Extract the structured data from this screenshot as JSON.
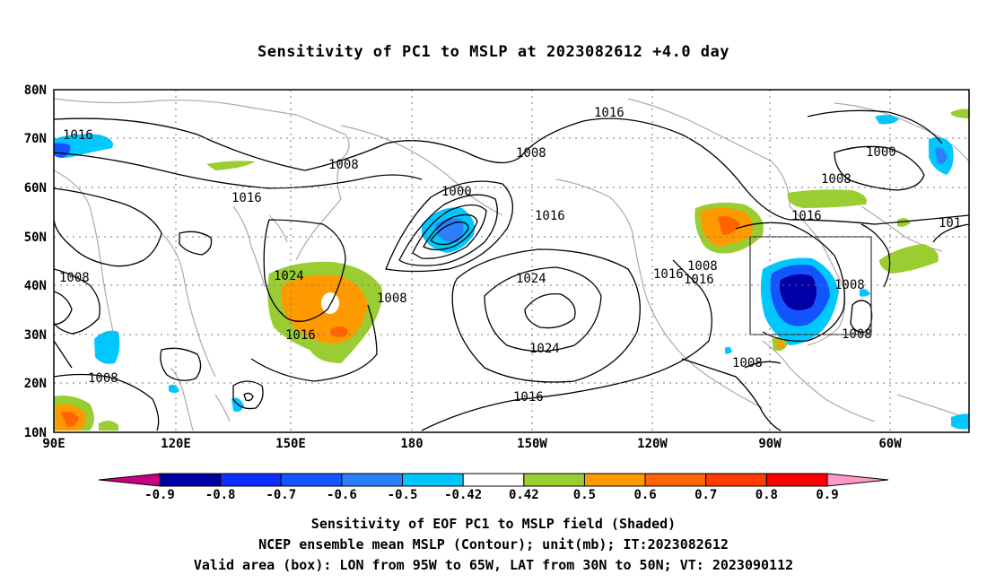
{
  "title": "Sensitivity of PC1 to MSLP at 2023082612 +4.0 day",
  "lat_labels": [
    "80N",
    "70N",
    "60N",
    "50N",
    "40N",
    "30N",
    "20N",
    "10N"
  ],
  "lon_labels": [
    "90E",
    "120E",
    "150E",
    "180",
    "150W",
    "120W",
    "90W",
    "60W"
  ],
  "colorbar": {
    "colors": [
      "#c8007f",
      "#0000a6",
      "#0a2fff",
      "#1454ff",
      "#2a80ff",
      "#00c8ff",
      "#ffffff",
      "#9acd32",
      "#ff9900",
      "#ff6400",
      "#ff3c00",
      "#ff0000",
      "#ff9ac8"
    ],
    "labels": [
      "-0.9",
      "-0.8",
      "-0.7",
      "-0.6",
      "-0.5",
      "-0.42",
      "0.42",
      "0.5",
      "0.6",
      "0.7",
      "0.8",
      "0.9"
    ]
  },
  "contour_labels": [
    "1016",
    "1016",
    "1008",
    "1008",
    "1016",
    "1000",
    "1016",
    "1024",
    "1008",
    "1016",
    "1008",
    "1024",
    "1016",
    "1024",
    "1016",
    "1008",
    "1008",
    "1016",
    "1016",
    "1008",
    "1008",
    "1008",
    "1000",
    "1008",
    "1016",
    "1008",
    "1008",
    "1016",
    "101"
  ],
  "captions": [
    "Sensitivity of EOF PC1 to MSLP field (Shaded)",
    "NCEP ensemble mean MSLP (Contour); unit(mb); IT:2023082612",
    "Valid area (box): LON from 95W to 65W, LAT from 30N to 50N; VT: 2023090112"
  ]
}
